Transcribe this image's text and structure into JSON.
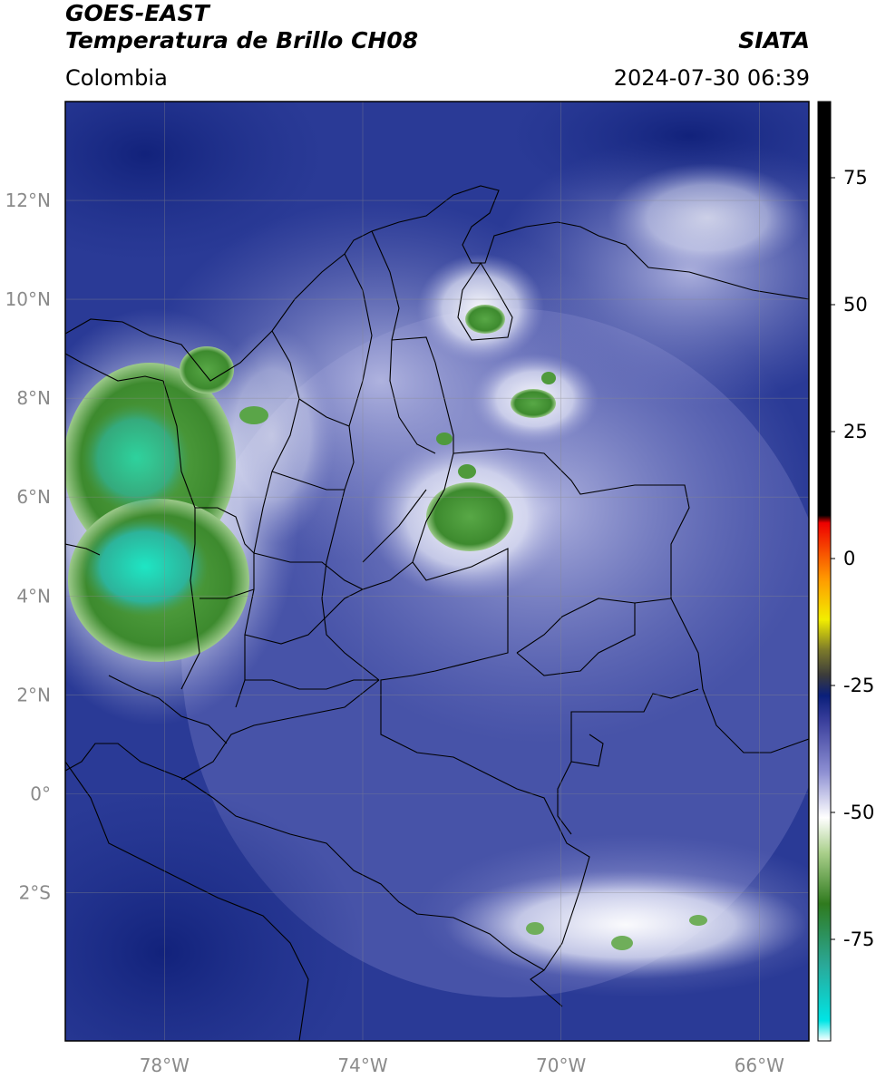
{
  "header": {
    "satellite": "GOES-EAST",
    "product": "Temperatura de Brillo CH08",
    "region": "Colombia",
    "agency": "SIATA",
    "datetime": "2024-07-30 06:39"
  },
  "map": {
    "lon_range": [
      -80,
      -65
    ],
    "lat_range": [
      -5,
      14
    ],
    "lat_ticks": [
      {
        "value": 12,
        "label": "12°N"
      },
      {
        "value": 10,
        "label": "10°N"
      },
      {
        "value": 8,
        "label": "8°N"
      },
      {
        "value": 6,
        "label": "6°N"
      },
      {
        "value": 4,
        "label": "4°N"
      },
      {
        "value": 2,
        "label": "2°N"
      },
      {
        "value": 0,
        "label": "0°"
      },
      {
        "value": -2,
        "label": "2°S"
      }
    ],
    "lon_ticks": [
      {
        "value": -78,
        "label": "78°W"
      },
      {
        "value": -74,
        "label": "74°W"
      },
      {
        "value": -70,
        "label": "70°W"
      },
      {
        "value": -66,
        "label": "66°W"
      }
    ],
    "grid": true,
    "colors": {
      "background_deep": "#1d2f8a",
      "mid_blue": "#5560b0",
      "light_lavender": "#a6aad8",
      "white_cloud": "#eef0fa",
      "green_cloud": "#4f9a3c",
      "cyan_cloud": "#20d8b8",
      "border": "#000000",
      "grid": "#8a8a8a"
    }
  },
  "colorbar": {
    "range": [
      -95,
      90
    ],
    "ticks": [
      {
        "value": 75,
        "label": "75"
      },
      {
        "value": 50,
        "label": "50"
      },
      {
        "value": 25,
        "label": "25"
      },
      {
        "value": 0,
        "label": "0"
      },
      {
        "value": -25,
        "label": "-25"
      },
      {
        "value": -50,
        "label": "-50"
      },
      {
        "value": -75,
        "label": "-75"
      }
    ],
    "stops": [
      {
        "value": -95,
        "color": "#ffffff"
      },
      {
        "value": -91,
        "color": "#00e5e5"
      },
      {
        "value": -80,
        "color": "#2aa898"
      },
      {
        "value": -68,
        "color": "#2f7a1e"
      },
      {
        "value": -58,
        "color": "#a9cf8a"
      },
      {
        "value": -51,
        "color": "#ffffff"
      },
      {
        "value": -42,
        "color": "#8d8fd2"
      },
      {
        "value": -32,
        "color": "#3a3f9c"
      },
      {
        "value": -27,
        "color": "#0a1f7a"
      },
      {
        "value": -23,
        "color": "#3b3b3b"
      },
      {
        "value": -18,
        "color": "#7c7a2a"
      },
      {
        "value": -12,
        "color": "#f2ee00"
      },
      {
        "value": -4,
        "color": "#ff9900"
      },
      {
        "value": 7,
        "color": "#ee0000"
      },
      {
        "value": 8.5,
        "color": "#000000"
      },
      {
        "value": 90,
        "color": "#000000"
      }
    ]
  }
}
